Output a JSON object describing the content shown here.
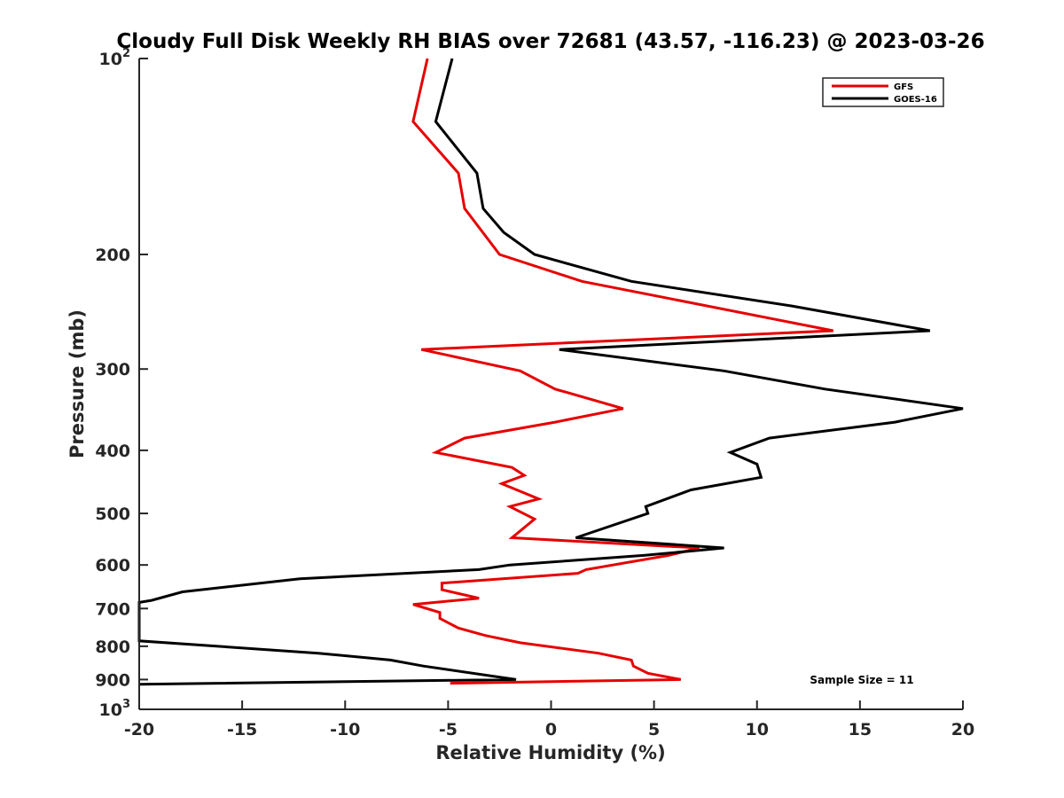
{
  "chart_data": {
    "type": "line",
    "title": "Cloudy Full Disk Weekly RH BIAS over 72681 (43.57, -116.23) @ 2023-03-26",
    "xlabel": "Relative Humidity (%)",
    "ylabel": "Pressure (mb)",
    "xlim": [
      -20,
      20
    ],
    "ylim": [
      100,
      1000
    ],
    "y_scale": "log",
    "y_reversed": true,
    "x_ticks": [
      "-20",
      "-15",
      "-10",
      "-5",
      "0",
      "5",
      "10",
      "15",
      "20"
    ],
    "y_ticks": [
      {
        "base": "10",
        "exp": "2",
        "value": 100
      },
      {
        "base": "200",
        "exp": "",
        "value": 200
      },
      {
        "base": "300",
        "exp": "",
        "value": 300
      },
      {
        "base": "400",
        "exp": "",
        "value": 400
      },
      {
        "base": "500",
        "exp": "",
        "value": 500
      },
      {
        "base": "600",
        "exp": "",
        "value": 600
      },
      {
        "base": "700",
        "exp": "",
        "value": 700
      },
      {
        "base": "800",
        "exp": "",
        "value": 800
      },
      {
        "base": "900",
        "exp": "",
        "value": 900
      },
      {
        "base": "10",
        "exp": "3",
        "value": 1000
      }
    ],
    "legend_position": "top-right",
    "grid": false,
    "series": [
      {
        "name": "GFS",
        "color": "#e60000",
        "points": [
          [
            -6.0,
            100
          ],
          [
            -6.7,
            125
          ],
          [
            -4.5,
            150
          ],
          [
            -4.2,
            170
          ],
          [
            -2.5,
            200
          ],
          [
            1.5,
            220
          ],
          [
            13.7,
            262
          ],
          [
            -6.3,
            280
          ],
          [
            -1.5,
            302
          ],
          [
            0.2,
            322
          ],
          [
            3.5,
            345
          ],
          [
            0.2,
            362
          ],
          [
            -4.2,
            383
          ],
          [
            -5.6,
            403
          ],
          [
            -1.9,
            425
          ],
          [
            -1.3,
            437
          ],
          [
            -2.4,
            450
          ],
          [
            -0.6,
            475
          ],
          [
            -2.0,
            488
          ],
          [
            -0.8,
            510
          ],
          [
            -1.9,
            545
          ],
          [
            7.2,
            565
          ],
          [
            5.7,
            580
          ],
          [
            1.7,
            610
          ],
          [
            1.3,
            618
          ],
          [
            -5.3,
            640
          ],
          [
            -5.3,
            655
          ],
          [
            -3.5,
            675
          ],
          [
            -6.7,
            690
          ],
          [
            -5.4,
            710
          ],
          [
            -5.4,
            725
          ],
          [
            -4.5,
            750
          ],
          [
            -3.2,
            770
          ],
          [
            -1.5,
            790
          ],
          [
            2.3,
            820
          ],
          [
            3.9,
            840
          ],
          [
            4.0,
            858
          ],
          [
            4.7,
            880
          ],
          [
            6.3,
            900
          ],
          [
            -4.9,
            912
          ]
        ]
      },
      {
        "name": "GOES-16",
        "color": "#000000",
        "points": [
          [
            -4.8,
            100
          ],
          [
            -5.6,
            125
          ],
          [
            -3.6,
            150
          ],
          [
            -3.3,
            170
          ],
          [
            -2.3,
            185
          ],
          [
            -0.8,
            200
          ],
          [
            3.9,
            220
          ],
          [
            11.7,
            240
          ],
          [
            18.4,
            262
          ],
          [
            0.4,
            280
          ],
          [
            8.4,
            302
          ],
          [
            13.3,
            322
          ],
          [
            20.0,
            345
          ],
          [
            16.7,
            362
          ],
          [
            10.6,
            383
          ],
          [
            8.7,
            403
          ],
          [
            10.0,
            420
          ],
          [
            10.2,
            440
          ],
          [
            6.8,
            460
          ],
          [
            4.6,
            488
          ],
          [
            4.7,
            500
          ],
          [
            1.2,
            545
          ],
          [
            8.4,
            565
          ],
          [
            4.5,
            580
          ],
          [
            -2.0,
            600
          ],
          [
            -3.5,
            610
          ],
          [
            -12.2,
            630
          ],
          [
            -17.9,
            660
          ],
          [
            -19.4,
            680
          ],
          [
            -20.0,
            685
          ],
          [
            -20.0,
            785
          ],
          [
            -11.3,
            820
          ],
          [
            -7.8,
            840
          ],
          [
            -6.2,
            858
          ],
          [
            -1.7,
            900
          ],
          [
            -20.0,
            915
          ]
        ]
      }
    ],
    "annotation": "Sample Size = 11"
  }
}
